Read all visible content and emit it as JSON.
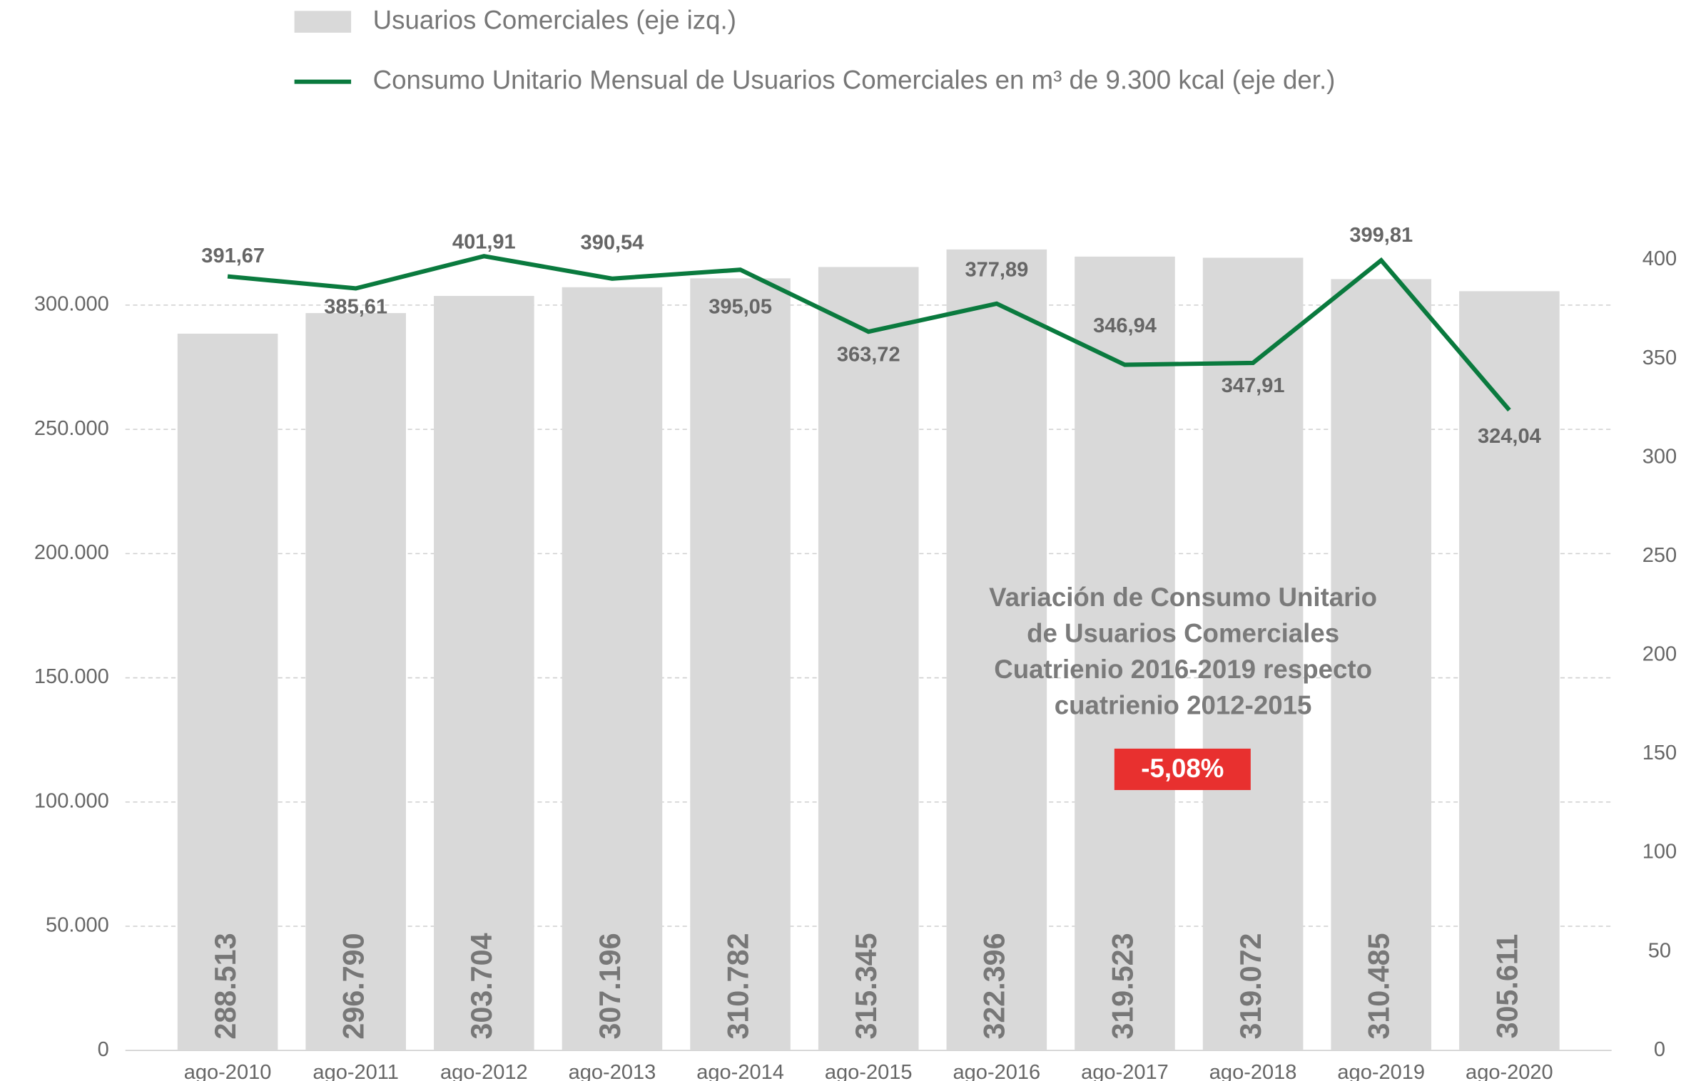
{
  "chart_data": {
    "type": "bar",
    "categories": [
      "ago-2010",
      "ago-2011",
      "ago-2012",
      "ago-2013",
      "ago-2014",
      "ago-2015",
      "ago-2016",
      "ago-2017",
      "ago-2018",
      "ago-2019",
      "ago-2020"
    ],
    "series": [
      {
        "name": "Usuarios Comerciales (eje izq.)",
        "type": "bar",
        "color": "#d9d9d9",
        "values": [
          288513,
          296790,
          303704,
          307196,
          310782,
          315345,
          322396,
          319523,
          319072,
          310485,
          305611
        ],
        "value_labels": [
          "288.513",
          "296.790",
          "303.704",
          "307.196",
          "310.782",
          "315.345",
          "322.396",
          "319.523",
          "319.072",
          "310.485",
          "305.611"
        ]
      },
      {
        "name": "Consumo Unitario Mensual de Usuarios Comerciales en m³ de 9.300 kcal (eje der.)",
        "type": "line",
        "axis": "y2",
        "color": "#0a7a3e",
        "values": [
          391.67,
          385.61,
          401.91,
          390.54,
          395.05,
          363.72,
          377.89,
          346.94,
          347.91,
          399.81,
          324.04
        ],
        "value_labels": [
          "391,67",
          "385,61",
          "401,91",
          "390,54",
          "395,05",
          "363,72",
          "377,89",
          "346,94",
          "347,91",
          "399,81",
          "324,04"
        ]
      }
    ],
    "ylim": [
      0,
      350000
    ],
    "yticks": [
      0,
      {
        "value": 50000,
        "label": "50.000"
      },
      {
        "value": 100000,
        "label": "100.000"
      },
      {
        "value": 150000,
        "label": "150.000"
      },
      {
        "value": 200000,
        "label": "200.000"
      },
      {
        "value": 250000,
        "label": "250.000"
      },
      {
        "value": 300000,
        "label": "300.000"
      }
    ],
    "y2lim": [
      0,
      440
    ],
    "y2ticks": [
      0,
      50,
      100,
      150,
      200,
      250,
      300,
      350,
      400
    ],
    "grid": true,
    "annotation": {
      "lines": [
        "Variación de Consumo Unitario",
        "de Usuarios Comerciales",
        "Cuatrienio 2016-2019 respecto",
        "cuatrienio 2012-2015"
      ],
      "value_label": "-5,08%",
      "color": "#e8302f"
    }
  }
}
